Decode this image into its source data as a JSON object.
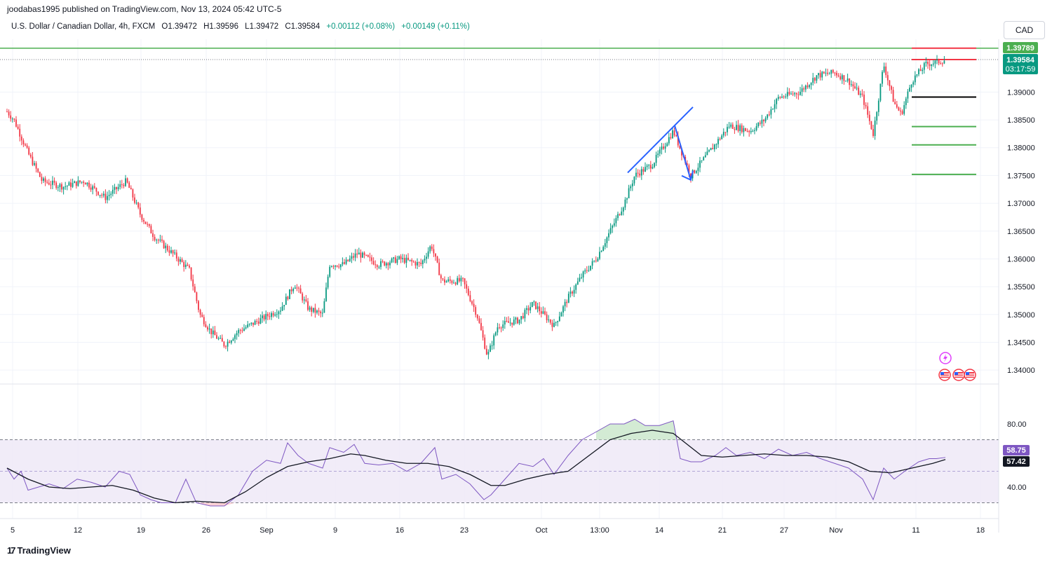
{
  "publisher_line": "joodabas1995 published on TradingView.com, Nov 13, 2024 05:42 UTC-5",
  "legend": {
    "symbol": "U.S. Dollar / Canadian Dollar, 4h, FXCM",
    "open": "O1.39472",
    "high": "H1.39596",
    "low": "L1.39472",
    "close": "C1.39584",
    "change": "+0.00112 (+0.08%)",
    "change2": "+0.00149 (+0.11%)"
  },
  "currency_button": "CAD",
  "price_badges": {
    "resistance": "1.39789",
    "last": "1.39584",
    "countdown": "03:17:59"
  },
  "rsi_badges": {
    "rsi": "58.75",
    "ma": "57.42"
  },
  "footer_brand": "TradingView",
  "colors": {
    "up": "#089981",
    "down": "#f23645",
    "rsi": "#7e57c2",
    "rsi_band": "#ede7f6",
    "annotation": "#2962ff",
    "level_green": "#4caf50"
  },
  "chart_data": {
    "type": "candlestick",
    "price_axis": {
      "min": 1.3375,
      "max": 1.3995,
      "ticks": [
        "1.39000",
        "1.38500",
        "1.38000",
        "1.37500",
        "1.37000",
        "1.36500",
        "1.36000",
        "1.35500",
        "1.35000",
        "1.34500",
        "1.34000"
      ]
    },
    "rsi_axis": {
      "min": 20,
      "max": 100,
      "ticks": [
        "80.00",
        "40.00"
      ],
      "bands": [
        30,
        70
      ],
      "mid": 50
    },
    "x_ticks": [
      "5",
      "12",
      "19",
      "26",
      "Sep",
      "9",
      "16",
      "23",
      "Oct",
      "13:00",
      "14",
      "21",
      "27",
      "Nov",
      "11",
      "18"
    ],
    "horizontal_levels": [
      {
        "value": 1.39789,
        "color": "#4caf50",
        "span": "full"
      },
      {
        "value": 1.39789,
        "color": "#f23645",
        "span": "right"
      },
      {
        "value": 1.39584,
        "color": "#f23645",
        "span": "right"
      },
      {
        "value": 1.3891,
        "color": "#000000",
        "span": "right"
      },
      {
        "value": 1.3838,
        "color": "#4caf50",
        "span": "right"
      },
      {
        "value": 1.3805,
        "color": "#4caf50",
        "span": "right"
      },
      {
        "value": 1.3752,
        "color": "#4caf50",
        "span": "right"
      }
    ],
    "price_path": [
      [
        0,
        1.388
      ],
      [
        20,
        1.385
      ],
      [
        40,
        1.379
      ],
      [
        60,
        1.374
      ],
      [
        90,
        1.373
      ],
      [
        120,
        1.374
      ],
      [
        150,
        1.371
      ],
      [
        180,
        1.374
      ],
      [
        200,
        1.368
      ],
      [
        220,
        1.364
      ],
      [
        250,
        1.3605
      ],
      [
        270,
        1.358
      ],
      [
        285,
        1.35
      ],
      [
        300,
        1.347
      ],
      [
        320,
        1.3445
      ],
      [
        340,
        1.347
      ],
      [
        370,
        1.349
      ],
      [
        400,
        1.351
      ],
      [
        420,
        1.3555
      ],
      [
        440,
        1.351
      ],
      [
        460,
        1.35
      ],
      [
        470,
        1.359
      ],
      [
        490,
        1.359
      ],
      [
        510,
        1.361
      ],
      [
        540,
        1.359
      ],
      [
        570,
        1.36
      ],
      [
        600,
        1.359
      ],
      [
        615,
        1.3625
      ],
      [
        630,
        1.356
      ],
      [
        660,
        1.356
      ],
      [
        680,
        1.35
      ],
      [
        695,
        1.3425
      ],
      [
        710,
        1.348
      ],
      [
        740,
        1.349
      ],
      [
        760,
        1.352
      ],
      [
        790,
        1.348
      ],
      [
        810,
        1.353
      ],
      [
        830,
        1.357
      ],
      [
        850,
        1.36
      ],
      [
        870,
        1.365
      ],
      [
        890,
        1.37
      ],
      [
        905,
        1.375
      ],
      [
        930,
        1.377
      ],
      [
        960,
        1.383
      ],
      [
        985,
        1.375
      ],
      [
        1010,
        1.379
      ],
      [
        1040,
        1.384
      ],
      [
        1070,
        1.383
      ],
      [
        1090,
        1.385
      ],
      [
        1110,
        1.389
      ],
      [
        1140,
        1.39
      ],
      [
        1165,
        1.393
      ],
      [
        1190,
        1.3935
      ],
      [
        1210,
        1.392
      ],
      [
        1230,
        1.389
      ],
      [
        1245,
        1.3825
      ],
      [
        1260,
        1.395
      ],
      [
        1275,
        1.388
      ],
      [
        1285,
        1.386
      ],
      [
        1300,
        1.392
      ],
      [
        1320,
        1.395
      ],
      [
        1340,
        1.3955
      ],
      [
        1348,
        1.39584
      ]
    ],
    "rsi": [
      [
        10,
        52
      ],
      [
        20,
        45
      ],
      [
        30,
        50
      ],
      [
        40,
        38
      ],
      [
        55,
        40
      ],
      [
        70,
        42
      ],
      [
        90,
        39
      ],
      [
        110,
        45
      ],
      [
        130,
        43
      ],
      [
        150,
        40
      ],
      [
        170,
        50
      ],
      [
        185,
        48
      ],
      [
        200,
        35
      ],
      [
        215,
        32
      ],
      [
        230,
        30
      ],
      [
        250,
        30
      ],
      [
        265,
        45
      ],
      [
        280,
        30
      ],
      [
        300,
        28
      ],
      [
        320,
        28
      ],
      [
        340,
        35
      ],
      [
        360,
        50
      ],
      [
        380,
        57
      ],
      [
        400,
        55
      ],
      [
        410,
        68
      ],
      [
        425,
        60
      ],
      [
        440,
        55
      ],
      [
        460,
        52
      ],
      [
        470,
        65
      ],
      [
        490,
        62
      ],
      [
        505,
        67
      ],
      [
        520,
        55
      ],
      [
        540,
        54
      ],
      [
        560,
        55
      ],
      [
        580,
        50
      ],
      [
        600,
        55
      ],
      [
        620,
        65
      ],
      [
        630,
        45
      ],
      [
        650,
        48
      ],
      [
        670,
        42
      ],
      [
        690,
        32
      ],
      [
        700,
        35
      ],
      [
        720,
        45
      ],
      [
        740,
        55
      ],
      [
        760,
        53
      ],
      [
        775,
        58
      ],
      [
        790,
        48
      ],
      [
        810,
        60
      ],
      [
        830,
        70
      ],
      [
        850,
        75
      ],
      [
        870,
        80
      ],
      [
        890,
        80
      ],
      [
        905,
        83
      ],
      [
        920,
        79
      ],
      [
        940,
        79
      ],
      [
        960,
        82
      ],
      [
        970,
        58
      ],
      [
        985,
        56
      ],
      [
        1000,
        56
      ],
      [
        1020,
        60
      ],
      [
        1035,
        65
      ],
      [
        1050,
        60
      ],
      [
        1070,
        62
      ],
      [
        1090,
        58
      ],
      [
        1110,
        64
      ],
      [
        1130,
        60
      ],
      [
        1150,
        62
      ],
      [
        1170,
        58
      ],
      [
        1190,
        55
      ],
      [
        1210,
        52
      ],
      [
        1230,
        45
      ],
      [
        1245,
        32
      ],
      [
        1260,
        52
      ],
      [
        1275,
        45
      ],
      [
        1290,
        50
      ],
      [
        1310,
        56
      ],
      [
        1325,
        58
      ],
      [
        1335,
        58
      ],
      [
        1348,
        58.75
      ]
    ],
    "rsi_ma": [
      [
        10,
        52
      ],
      [
        40,
        45
      ],
      [
        70,
        40
      ],
      [
        100,
        39
      ],
      [
        130,
        40
      ],
      [
        160,
        41
      ],
      [
        190,
        38
      ],
      [
        220,
        33
      ],
      [
        250,
        30
      ],
      [
        280,
        31
      ],
      [
        320,
        30
      ],
      [
        350,
        37
      ],
      [
        380,
        46
      ],
      [
        410,
        53
      ],
      [
        440,
        56
      ],
      [
        470,
        58
      ],
      [
        500,
        61
      ],
      [
        520,
        60
      ],
      [
        550,
        57
      ],
      [
        580,
        55
      ],
      [
        610,
        55
      ],
      [
        640,
        53
      ],
      [
        670,
        48
      ],
      [
        700,
        41
      ],
      [
        720,
        41
      ],
      [
        750,
        45
      ],
      [
        780,
        48
      ],
      [
        810,
        50
      ],
      [
        840,
        60
      ],
      [
        870,
        70
      ],
      [
        900,
        74
      ],
      [
        930,
        76
      ],
      [
        960,
        74
      ],
      [
        980,
        67
      ],
      [
        1000,
        60
      ],
      [
        1030,
        59
      ],
      [
        1060,
        60
      ],
      [
        1090,
        61
      ],
      [
        1120,
        60
      ],
      [
        1150,
        60
      ],
      [
        1180,
        59
      ],
      [
        1210,
        56
      ],
      [
        1240,
        50
      ],
      [
        1270,
        49
      ],
      [
        1300,
        52
      ],
      [
        1330,
        55
      ],
      [
        1348,
        57.42
      ]
    ],
    "annotations": [
      {
        "type": "trendline",
        "from": [
          895,
          1.3755
        ],
        "to": [
          988,
          1.3873
        ]
      },
      {
        "type": "arrow",
        "from": [
          962,
          1.384
        ],
        "to": [
          985,
          1.3742
        ]
      }
    ]
  }
}
